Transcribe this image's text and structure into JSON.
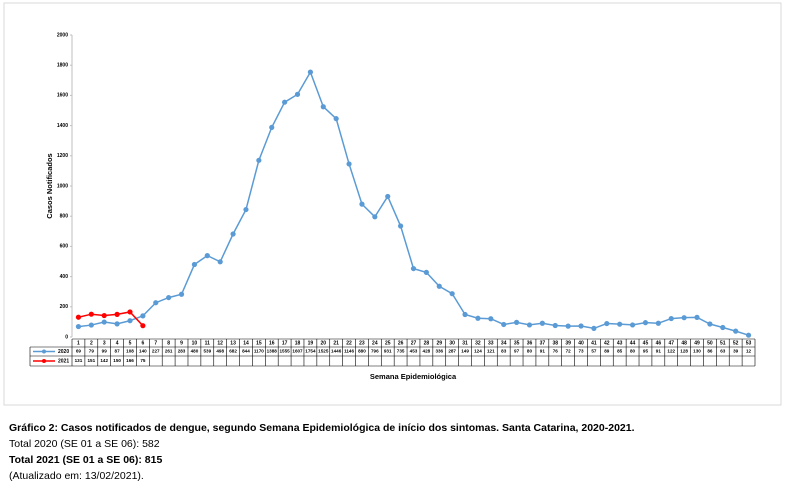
{
  "chart_data": {
    "type": "line",
    "y_label": "Casos Notificados",
    "x_label": "Semana Epidemiológica",
    "categories": [
      "1",
      "2",
      "3",
      "4",
      "5",
      "6",
      "7",
      "8",
      "9",
      "10",
      "11",
      "12",
      "13",
      "14",
      "15",
      "16",
      "17",
      "18",
      "19",
      "20",
      "21",
      "22",
      "23",
      "24",
      "25",
      "26",
      "27",
      "28",
      "29",
      "30",
      "31",
      "32",
      "33",
      "34",
      "35",
      "36",
      "37",
      "38",
      "39",
      "40",
      "41",
      "42",
      "43",
      "44",
      "45",
      "46",
      "47",
      "48",
      "49",
      "50",
      "51",
      "52",
      "53"
    ],
    "series": [
      {
        "name": "2020",
        "color": "#5b9bd5",
        "values": [
          69,
          79,
          99,
          87,
          108,
          140,
          227,
          261,
          283,
          480,
          539,
          498,
          682,
          844,
          1170,
          1388,
          1555,
          1607,
          1754,
          1525,
          1446,
          1146,
          880,
          796,
          931,
          735,
          453,
          428,
          336,
          287,
          149,
          124,
          121,
          83,
          97,
          80,
          91,
          76,
          72,
          73,
          57,
          89,
          85,
          80,
          95,
          91,
          122,
          128,
          130,
          86,
          63,
          39,
          12
        ]
      },
      {
        "name": "2021",
        "color": "#ff0000",
        "values": [
          131,
          151,
          142,
          150,
          166,
          75,
          null,
          null,
          null,
          null,
          null,
          null,
          null,
          null,
          null,
          null,
          null,
          null,
          null,
          null,
          null,
          null,
          null,
          null,
          null,
          null,
          null,
          null,
          null,
          null,
          null,
          null,
          null,
          null,
          null,
          null,
          null,
          null,
          null,
          null,
          null,
          null,
          null,
          null,
          null,
          null,
          null,
          null,
          null,
          null,
          null,
          null,
          null
        ]
      }
    ],
    "ylim": [
      0,
      2000
    ],
    "yticks": [
      0,
      200,
      400,
      600,
      800,
      1000,
      1200,
      1400,
      1600,
      1800,
      2000
    ],
    "grid": false
  },
  "caption": {
    "title": "Gráfico 2: Casos notificados de dengue, segundo Semana Epidemiológica de início dos sintomas. Santa Catarina, 2020-2021.",
    "total_2020": "Total 2020 (SE 01 a SE 06): 582",
    "total_2021": "Total 2021 (SE 01 a SE 06): 815",
    "updated": "(Atualizado em: 13/02/2021)."
  }
}
